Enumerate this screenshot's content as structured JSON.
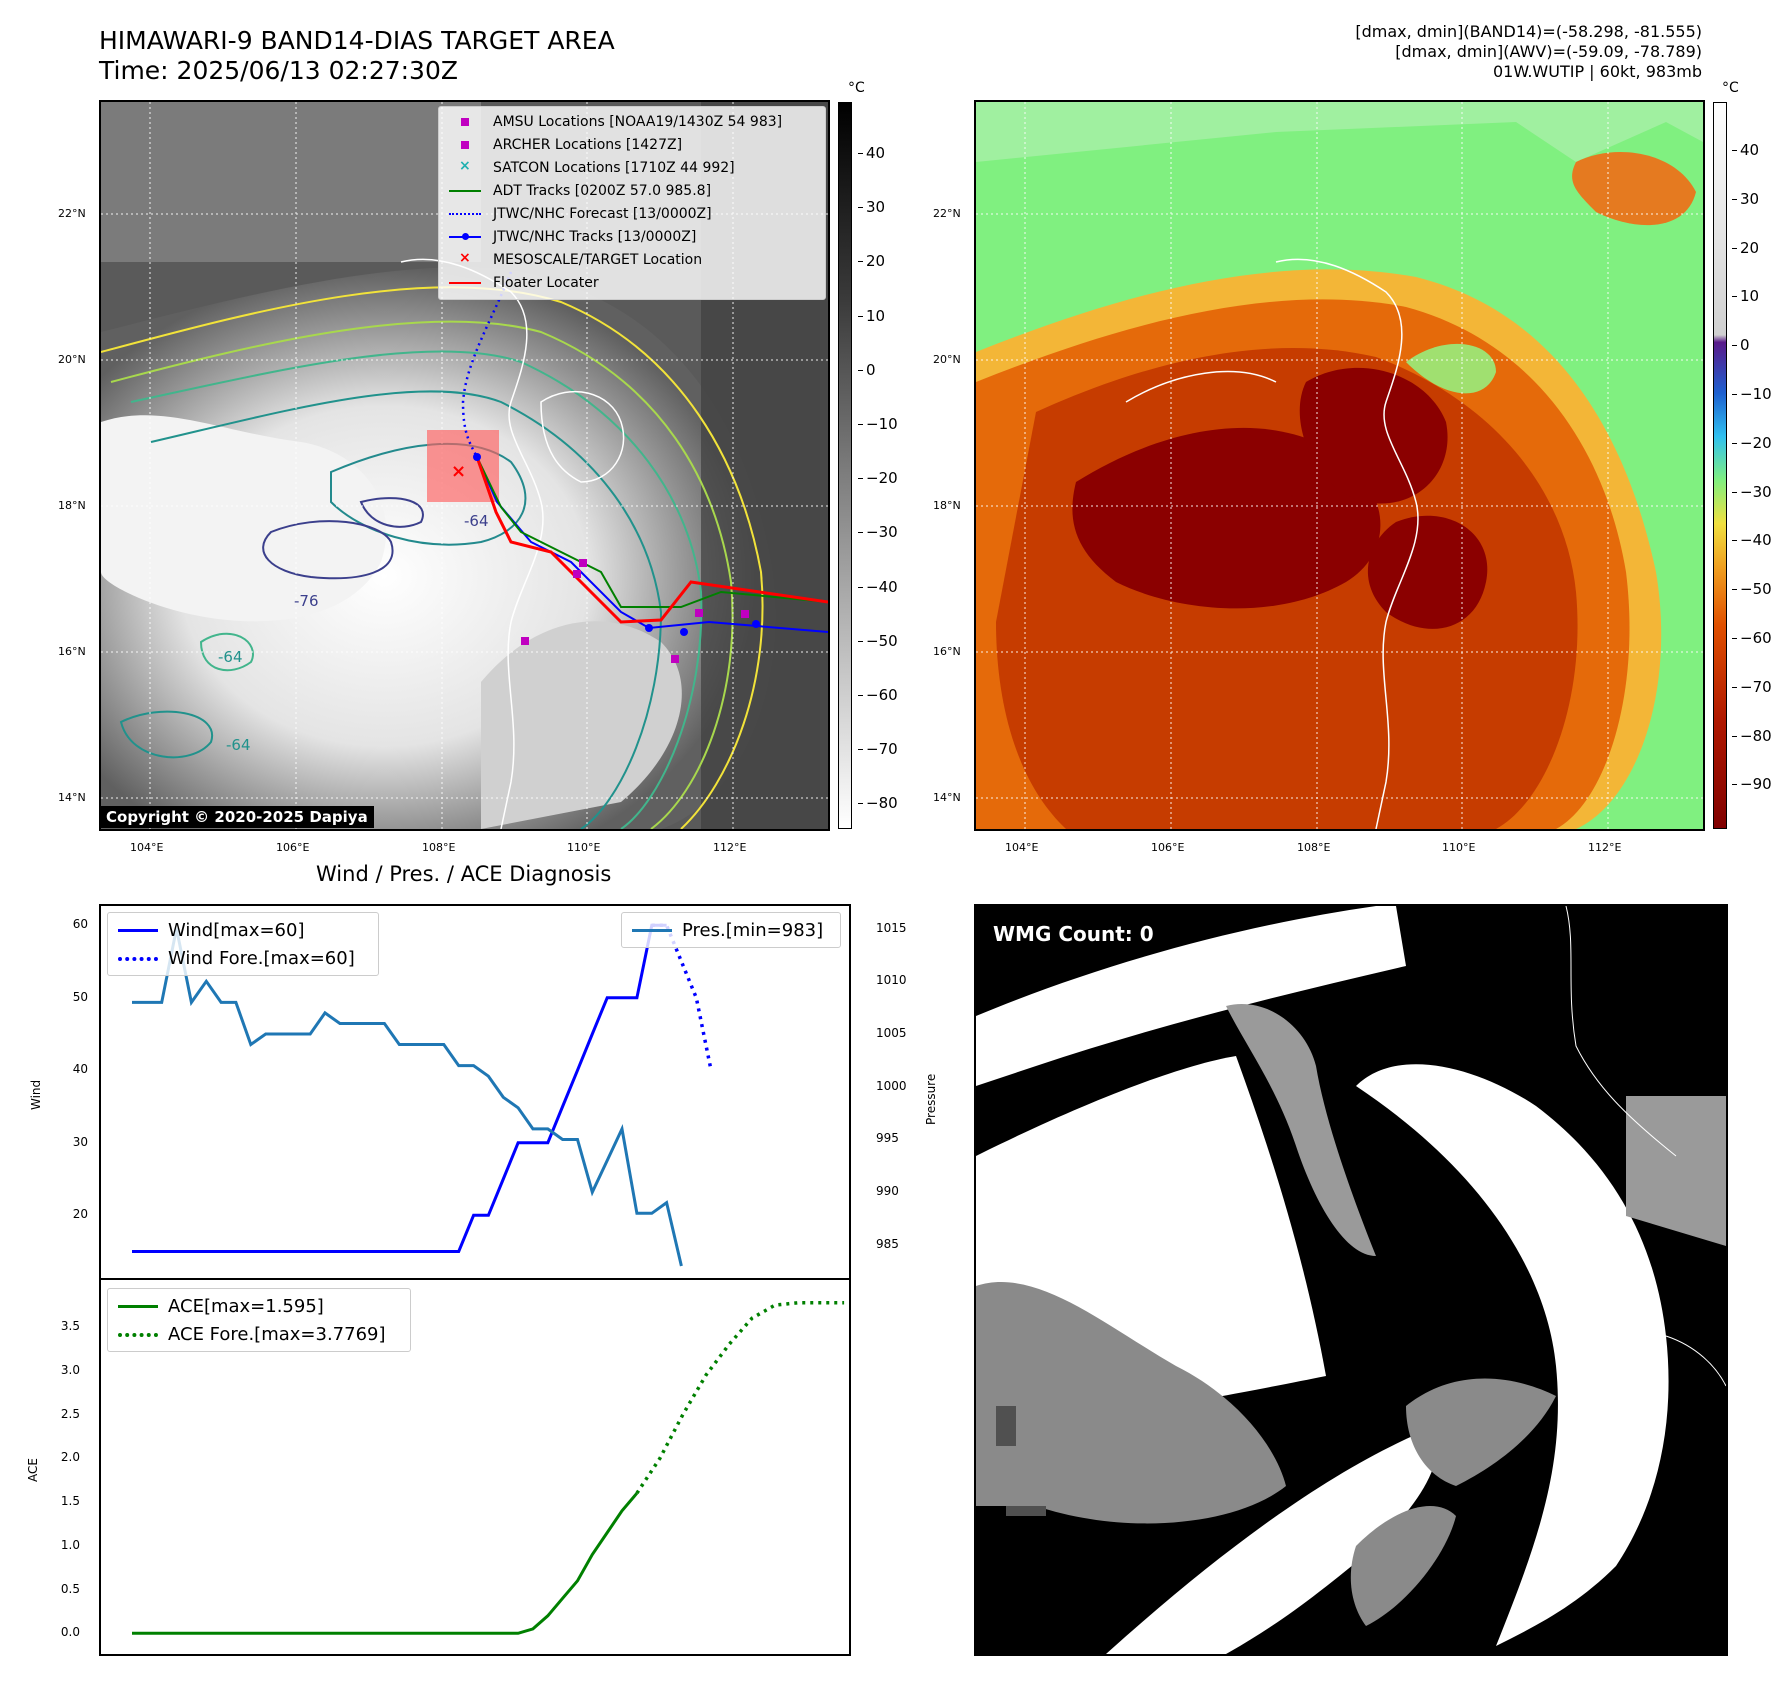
{
  "header": {
    "title_line1": "HIMAWARI-9 BAND14-DIAS TARGET AREA",
    "title_line2": "Time: 2025/06/13 02:27:30Z",
    "right_line1": "[dmax, dmin](BAND14)=(-58.298, -81.555)",
    "right_line2": "[dmax, dmin](AWV)=(-59.09, -78.789)",
    "right_line3": "01W.WUTIP | 60kt, 983mb"
  },
  "map": {
    "lat_labels": [
      "22°N",
      "20°N",
      "18°N",
      "16°N",
      "14°N"
    ],
    "lon_labels": [
      "104°E",
      "106°E",
      "108°E",
      "110°E",
      "112°E"
    ],
    "contour_labels": [
      "-64",
      "-76",
      "-64",
      "-64"
    ],
    "copyright": "Copyright © 2020-2025 Dapiya"
  },
  "colorbar_left": {
    "unit": "°C",
    "ticks": [
      "40",
      "30",
      "20",
      "10",
      "0",
      "−10",
      "−20",
      "−30",
      "−40",
      "−50",
      "−60",
      "−70",
      "−80"
    ]
  },
  "colorbar_right": {
    "unit": "°C",
    "ticks": [
      "40",
      "30",
      "20",
      "10",
      "0",
      "−10",
      "−20",
      "−30",
      "−40",
      "−50",
      "−60",
      "−70",
      "−80",
      "−90"
    ]
  },
  "legend": {
    "items": [
      {
        "label": "AMSU Locations [NOAA19/1430Z 54 983]",
        "color": "#c000c0",
        "marker": "square"
      },
      {
        "label": "ARCHER Locations [1427Z]",
        "color": "#c000c0",
        "marker": "square"
      },
      {
        "label": "SATCON Locations [1710Z 44 992]",
        "color": "#20b0b0",
        "marker": "x"
      },
      {
        "label": "ADT Tracks [0200Z 57.0 985.8]",
        "color": "#008000",
        "marker": "line"
      },
      {
        "label": "JTWC/NHC Forecast [13/0000Z]",
        "color": "#0000ff",
        "marker": "dotted"
      },
      {
        "label": "JTWC/NHC Tracks [13/0000Z]",
        "color": "#0000ff",
        "marker": "line-dot"
      },
      {
        "label": "MESOSCALE/TARGET Location",
        "color": "#ff0000",
        "marker": "x"
      },
      {
        "label": "Floater Locater",
        "color": "#ff0000",
        "marker": "line"
      }
    ]
  },
  "diagnosis": {
    "title": "Wind / Pres. / ACE Diagnosis",
    "wind_axis_label": "Wind",
    "pressure_axis_label": "Pressure",
    "ace_axis_label": "ACE",
    "wind_legend": [
      "Wind[max=60]",
      "Wind Fore.[max=60]"
    ],
    "pres_legend": "Pres.[min=983]",
    "ace_legend": [
      "ACE[max=1.595]",
      "ACE Fore.[max=3.7769]"
    ]
  },
  "wmg": {
    "label": "WMG Count: 0"
  },
  "colors": {
    "wind": "#0000ff",
    "pressure": "#1f77b4",
    "ace": "#008000",
    "track": "#ff0000"
  },
  "chart_data": [
    {
      "type": "line",
      "name": "wind",
      "x": [
        0,
        1,
        2,
        3,
        4,
        5,
        6,
        7,
        8,
        9,
        10,
        11,
        12,
        13,
        14,
        15,
        16,
        17,
        18,
        19,
        20,
        21,
        22,
        23,
        24,
        25,
        26,
        27,
        28,
        29,
        30,
        31,
        32,
        33,
        34,
        35,
        36,
        37,
        38,
        39
      ],
      "series": [
        {
          "name": "Wind[max=60]",
          "values": [
            15,
            15,
            15,
            15,
            15,
            15,
            15,
            15,
            15,
            15,
            15,
            15,
            15,
            15,
            15,
            15,
            15,
            15,
            15,
            15,
            15,
            15,
            15,
            20,
            20,
            25,
            30,
            30,
            30,
            35,
            40,
            45,
            50,
            50,
            50,
            60,
            60,
            null,
            null,
            null
          ]
        },
        {
          "name": "Wind Fore.[max=60]",
          "values": [
            null,
            null,
            null,
            null,
            null,
            null,
            null,
            null,
            null,
            null,
            null,
            null,
            null,
            null,
            null,
            null,
            null,
            null,
            null,
            null,
            null,
            null,
            null,
            null,
            null,
            null,
            null,
            null,
            null,
            null,
            null,
            null,
            null,
            null,
            null,
            60,
            60,
            55,
            50,
            40
          ]
        }
      ],
      "ylim": [
        13,
        61
      ],
      "yticks": [
        "20",
        "30",
        "40",
        "50",
        "60"
      ]
    },
    {
      "type": "line",
      "name": "pressure",
      "series": [
        {
          "name": "Pres.[min=983]",
          "values": [
            1008,
            1008,
            1008,
            1015,
            1008,
            1010,
            1008,
            1008,
            1004,
            1005,
            1005,
            1005,
            1005,
            1007,
            1006,
            1006,
            1006,
            1006,
            1004,
            1004,
            1004,
            1004,
            1002,
            1002,
            1001,
            999,
            998,
            996,
            996,
            995,
            995,
            990,
            993,
            996,
            988,
            988,
            989,
            983
          ]
        }
      ],
      "ylim": [
        983,
        1016
      ],
      "yticks": [
        "985",
        "990",
        "995",
        "1000",
        "1005",
        "1010",
        "1015"
      ]
    },
    {
      "type": "line",
      "name": "ace",
      "series": [
        {
          "name": "ACE[max=1.595]",
          "values": [
            0,
            0,
            0,
            0,
            0,
            0,
            0,
            0,
            0,
            0,
            0,
            0,
            0,
            0,
            0,
            0,
            0,
            0,
            0,
            0,
            0,
            0,
            0,
            0,
            0,
            0,
            0,
            0.05,
            0.2,
            0.4,
            0.6,
            0.9,
            1.15,
            1.4,
            1.6
          ]
        },
        {
          "name": "ACE Fore.[max=3.7769]",
          "values": [
            1.6,
            2.0,
            2.5,
            2.95,
            3.3,
            3.6,
            3.75,
            3.7769,
            3.7769,
            3.7769
          ]
        }
      ],
      "ylim": [
        -0.1,
        3.9
      ],
      "yticks": [
        "0.0",
        "0.5",
        "1.0",
        "1.5",
        "2.0",
        "2.5",
        "3.0",
        "3.5"
      ]
    }
  ]
}
